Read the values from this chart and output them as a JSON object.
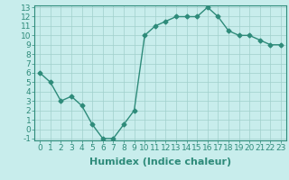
{
  "x": [
    0,
    1,
    2,
    3,
    4,
    5,
    6,
    7,
    8,
    9,
    10,
    11,
    12,
    13,
    14,
    15,
    16,
    17,
    18,
    19,
    20,
    21,
    22,
    23
  ],
  "y": [
    6,
    5,
    3,
    3.5,
    2.5,
    0.5,
    -1,
    -1,
    0.5,
    2,
    10,
    11,
    11.5,
    12,
    12,
    12,
    13,
    12,
    10.5,
    10,
    10,
    9.5,
    9,
    9
  ],
  "line_color": "#2e8b7a",
  "bg_color": "#c8edec",
  "grid_color": "#a0d0cc",
  "xlabel": "Humidex (Indice chaleur)",
  "ylim": [
    -1,
    13
  ],
  "xlim": [
    -0.5,
    23.5
  ],
  "yticks": [
    -1,
    0,
    1,
    2,
    3,
    4,
    5,
    6,
    7,
    8,
    9,
    10,
    11,
    12,
    13
  ],
  "xticks": [
    0,
    1,
    2,
    3,
    4,
    5,
    6,
    7,
    8,
    9,
    10,
    11,
    12,
    13,
    14,
    15,
    16,
    17,
    18,
    19,
    20,
    21,
    22,
    23
  ],
  "xtick_labels": [
    "0",
    "1",
    "2",
    "3",
    "4",
    "5",
    "6",
    "7",
    "8",
    "9",
    "10",
    "11",
    "12",
    "13",
    "14",
    "15",
    "16",
    "17",
    "18",
    "19",
    "20",
    "21",
    "22",
    "23"
  ],
  "marker": "D",
  "marker_size": 2.5,
  "line_width": 1.0,
  "xlabel_fontsize": 8,
  "tick_fontsize": 6.5
}
